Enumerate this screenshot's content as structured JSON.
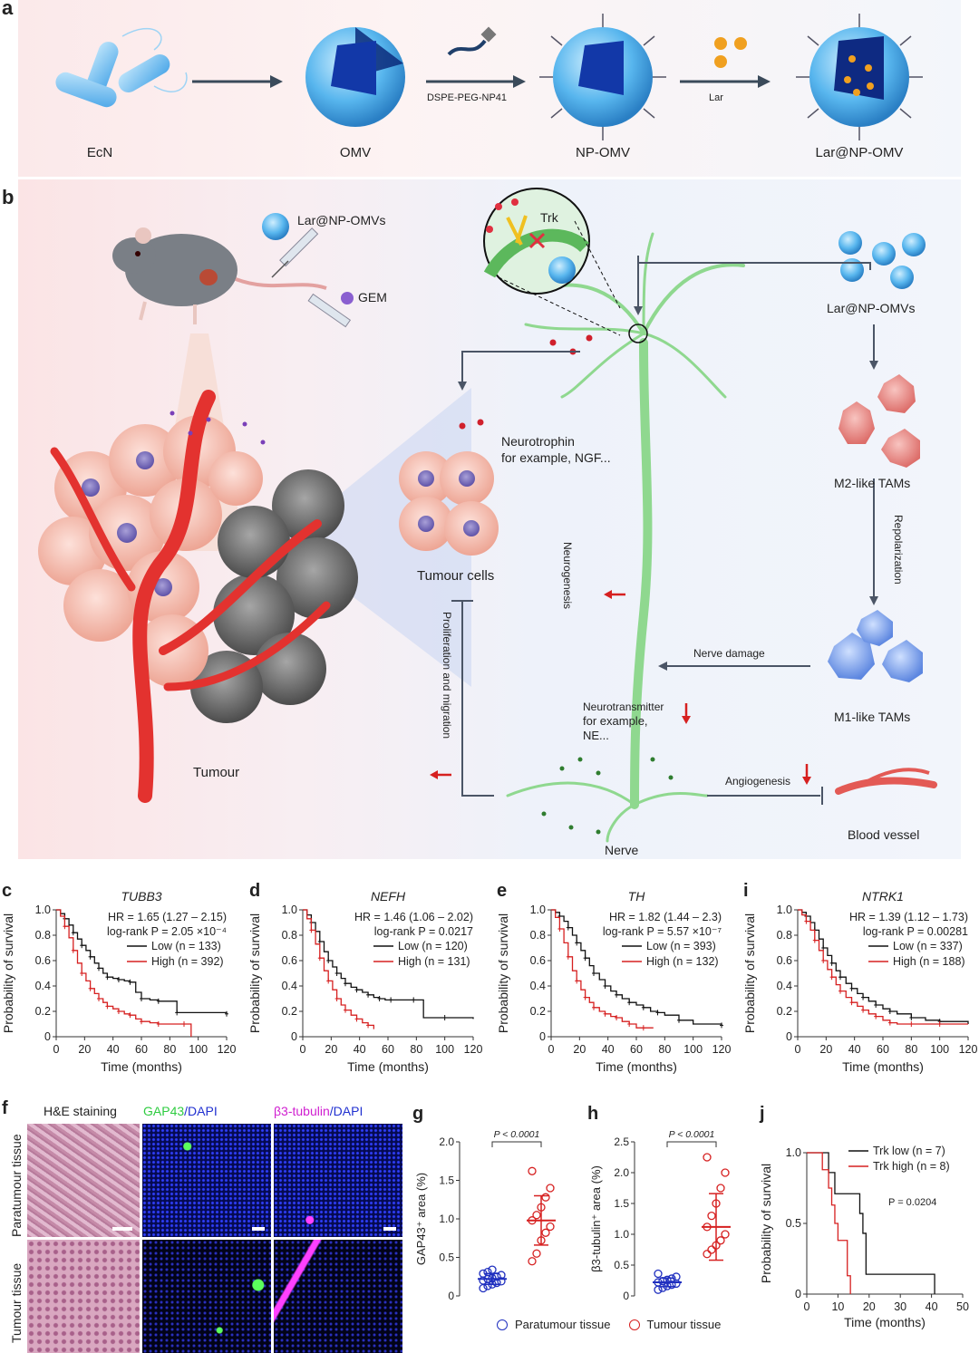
{
  "panel_letters": {
    "a": "a",
    "b": "b",
    "c": "c",
    "d": "d",
    "e": "e",
    "i": "i",
    "f": "f",
    "g": "g",
    "h": "h",
    "j": "j"
  },
  "panel_a": {
    "items": [
      "EcN",
      "OMV",
      "NP-OMV",
      "Lar@NP-OMV"
    ],
    "arrow1_label": "DSPE-PEG-NP41",
    "arrow2_label": "Lar"
  },
  "panel_b": {
    "injection_label": "Lar@NP-OMVs",
    "gem_label": "GEM",
    "trk_label": "Trk",
    "tumour_label": "Tumour",
    "neurotrophin_label_1": "Neurotrophin",
    "neurotrophin_label_2": "for example, NGF...",
    "tumour_cells_label": "Tumour cells",
    "neurogenesis_label": "Neurogenesis",
    "prolif_label": "Proliferation and migration",
    "omvs_label": "Lar@NP-OMVs",
    "m2_label": "M2-like TAMs",
    "repolar_label": "Repolarization",
    "nerve_damage_label": "Nerve damage",
    "m1_label": "M1-like TAMs",
    "neurotransmitter_label_1": "Neurotransmitter",
    "neurotransmitter_label_2": "for example,",
    "neurotransmitter_label_3": "NE...",
    "angiogenesis_label": "Angiogenesis",
    "blood_vessel_label": "Blood vessel",
    "nerve_label": "Nerve"
  },
  "colors": {
    "low": "#111111",
    "high": "#d62020",
    "para": "#1f2fbf",
    "tumour": "#d62020",
    "green": "#7ed98a",
    "red_vessel": "#e3322f"
  },
  "chart_data": [
    {
      "type": "line",
      "panel": "c",
      "title": "TUBB3",
      "xlabel": "Time (months)",
      "ylabel": "Probability of survival",
      "xlim": [
        0,
        120
      ],
      "ylim": [
        0,
        1
      ],
      "xticks": [
        0,
        20,
        40,
        60,
        80,
        100,
        120
      ],
      "yticks": [
        0,
        0.2,
        0.4,
        0.6,
        0.8,
        1.0
      ],
      "ann": [
        "HR = 1.65 (1.27 – 2.15)",
        "log-rank P = 2.05 ×10⁻⁴"
      ],
      "legend": [
        "Low (n = 133)",
        "High (n = 392)"
      ],
      "series": [
        {
          "name": "Low",
          "color": "low",
          "x": [
            0,
            3,
            6,
            9,
            12,
            15,
            18,
            21,
            24,
            27,
            30,
            33,
            36,
            40,
            44,
            48,
            52,
            56,
            60,
            66,
            72,
            78,
            85,
            95,
            120
          ],
          "y": [
            1,
            0.97,
            0.93,
            0.88,
            0.82,
            0.77,
            0.72,
            0.68,
            0.63,
            0.58,
            0.54,
            0.5,
            0.47,
            0.46,
            0.45,
            0.44,
            0.43,
            0.35,
            0.3,
            0.29,
            0.28,
            0.28,
            0.19,
            0.19,
            0.18
          ]
        },
        {
          "name": "High",
          "color": "high",
          "x": [
            0,
            3,
            6,
            9,
            12,
            15,
            18,
            21,
            24,
            27,
            30,
            33,
            36,
            40,
            44,
            48,
            52,
            56,
            60,
            66,
            72,
            80,
            90,
            95
          ],
          "y": [
            1,
            0.95,
            0.87,
            0.78,
            0.68,
            0.58,
            0.5,
            0.44,
            0.38,
            0.34,
            0.3,
            0.27,
            0.24,
            0.22,
            0.2,
            0.18,
            0.17,
            0.14,
            0.12,
            0.11,
            0.1,
            0.1,
            0.1,
            0.0
          ]
        }
      ]
    },
    {
      "type": "line",
      "panel": "d",
      "title": "NEFH",
      "xlabel": "Time (months)",
      "ylabel": "Probability of survival",
      "xlim": [
        0,
        120
      ],
      "ylim": [
        0,
        1
      ],
      "xticks": [
        0,
        20,
        40,
        60,
        80,
        100,
        120
      ],
      "yticks": [
        0,
        0.2,
        0.4,
        0.6,
        0.8,
        1.0
      ],
      "ann": [
        "HR = 1.46 (1.06 – 2.02)",
        "log-rank P = 0.0217"
      ],
      "legend": [
        "Low (n = 120)",
        "High (n = 131)"
      ],
      "series": [
        {
          "name": "Low",
          "color": "low",
          "x": [
            0,
            3,
            6,
            9,
            12,
            15,
            18,
            21,
            24,
            27,
            30,
            34,
            38,
            42,
            46,
            50,
            54,
            58,
            62,
            70,
            78,
            85,
            100,
            120
          ],
          "y": [
            1,
            0.96,
            0.9,
            0.83,
            0.75,
            0.67,
            0.6,
            0.55,
            0.5,
            0.46,
            0.42,
            0.39,
            0.37,
            0.35,
            0.33,
            0.31,
            0.3,
            0.29,
            0.29,
            0.29,
            0.29,
            0.15,
            0.15,
            0.14
          ]
        },
        {
          "name": "High",
          "color": "high",
          "x": [
            0,
            3,
            6,
            9,
            12,
            15,
            18,
            21,
            24,
            27,
            30,
            34,
            38,
            42,
            46,
            50
          ],
          "y": [
            1,
            0.93,
            0.84,
            0.73,
            0.62,
            0.52,
            0.44,
            0.37,
            0.3,
            0.25,
            0.21,
            0.17,
            0.14,
            0.11,
            0.09,
            0.06
          ]
        }
      ]
    },
    {
      "type": "line",
      "panel": "e",
      "title": "TH",
      "xlabel": "Time (months)",
      "ylabel": "Probability of survival",
      "xlim": [
        0,
        120
      ],
      "ylim": [
        0,
        1
      ],
      "xticks": [
        0,
        20,
        40,
        60,
        80,
        100,
        120
      ],
      "yticks": [
        0,
        0.2,
        0.4,
        0.6,
        0.8,
        1.0
      ],
      "ann": [
        "HR = 1.82 (1.44 – 2.3)",
        "log-rank P = 5.57 ×10⁻⁷"
      ],
      "legend": [
        "Low (n = 393)",
        "High (n = 132)"
      ],
      "series": [
        {
          "name": "Low",
          "color": "low",
          "x": [
            0,
            3,
            6,
            9,
            12,
            15,
            18,
            21,
            24,
            27,
            30,
            34,
            38,
            42,
            46,
            50,
            55,
            60,
            65,
            70,
            75,
            80,
            90,
            100,
            120
          ],
          "y": [
            1,
            0.98,
            0.95,
            0.91,
            0.86,
            0.8,
            0.74,
            0.68,
            0.62,
            0.56,
            0.5,
            0.45,
            0.4,
            0.36,
            0.33,
            0.3,
            0.27,
            0.25,
            0.23,
            0.2,
            0.19,
            0.17,
            0.13,
            0.1,
            0.09
          ]
        },
        {
          "name": "High",
          "color": "high",
          "x": [
            0,
            3,
            6,
            9,
            12,
            15,
            18,
            21,
            24,
            27,
            30,
            34,
            38,
            42,
            46,
            50,
            55,
            60,
            65,
            72
          ],
          "y": [
            1,
            0.94,
            0.85,
            0.74,
            0.63,
            0.52,
            0.44,
            0.37,
            0.31,
            0.27,
            0.23,
            0.2,
            0.18,
            0.16,
            0.15,
            0.12,
            0.1,
            0.07,
            0.07,
            0.07
          ]
        }
      ]
    },
    {
      "type": "line",
      "panel": "i",
      "title": "NTRK1",
      "xlabel": "Time (months)",
      "ylabel": "Probability of survival",
      "xlim": [
        0,
        120
      ],
      "ylim": [
        0,
        1
      ],
      "xticks": [
        0,
        20,
        40,
        60,
        80,
        100,
        120
      ],
      "yticks": [
        0,
        0.2,
        0.4,
        0.6,
        0.8,
        1.0
      ],
      "ann": [
        "HR = 1.39 (1.12 – 1.73)",
        "log-rank P = 0.00281"
      ],
      "legend": [
        "Low (n = 337)",
        "High (n = 188)"
      ],
      "series": [
        {
          "name": "Low",
          "color": "low",
          "x": [
            0,
            3,
            6,
            9,
            12,
            15,
            18,
            21,
            24,
            27,
            30,
            34,
            38,
            42,
            46,
            50,
            55,
            60,
            65,
            70,
            80,
            90,
            100,
            120
          ],
          "y": [
            1,
            0.98,
            0.95,
            0.9,
            0.84,
            0.77,
            0.7,
            0.64,
            0.58,
            0.52,
            0.47,
            0.42,
            0.38,
            0.34,
            0.31,
            0.28,
            0.25,
            0.22,
            0.2,
            0.18,
            0.15,
            0.13,
            0.12,
            0.1
          ]
        },
        {
          "name": "High",
          "color": "high",
          "x": [
            0,
            3,
            6,
            9,
            12,
            15,
            18,
            21,
            24,
            27,
            30,
            34,
            38,
            42,
            46,
            50,
            55,
            60,
            65,
            70,
            80,
            90,
            100,
            120
          ],
          "y": [
            1,
            0.96,
            0.91,
            0.84,
            0.76,
            0.68,
            0.6,
            0.53,
            0.47,
            0.41,
            0.36,
            0.31,
            0.27,
            0.24,
            0.21,
            0.18,
            0.16,
            0.13,
            0.11,
            0.1,
            0.1,
            0.1,
            0.1,
            0.1
          ]
        }
      ]
    },
    {
      "type": "scatter",
      "panel": "g",
      "ylabel": "GAP43⁺ area (%)",
      "ylim": [
        0,
        2.0
      ],
      "yticks": [
        0,
        0.5,
        1.0,
        1.5,
        2.0
      ],
      "pval": "P < 0.0001",
      "groups": [
        {
          "name": "Paratumour tissue",
          "color": "para",
          "mean": 0.22,
          "sd": 0.07,
          "values": [
            0.1,
            0.13,
            0.15,
            0.17,
            0.19,
            0.2,
            0.22,
            0.23,
            0.25,
            0.27,
            0.29,
            0.31,
            0.34
          ]
        },
        {
          "name": "Tumour tissue",
          "color": "tumour",
          "mean": 0.98,
          "sd": 0.32,
          "values": [
            0.45,
            0.55,
            0.72,
            0.82,
            0.9,
            0.98,
            1.05,
            1.15,
            1.28,
            1.4,
            1.62
          ]
        }
      ]
    },
    {
      "type": "scatter",
      "panel": "h",
      "ylabel": "β3-tubulin⁺ area (%)",
      "ylim": [
        0,
        2.5
      ],
      "yticks": [
        0,
        0.5,
        1.0,
        1.5,
        2.0,
        2.5
      ],
      "pval": "P < 0.0001",
      "groups": [
        {
          "name": "Paratumour tissue",
          "color": "para",
          "mean": 0.22,
          "sd": 0.07,
          "values": [
            0.1,
            0.13,
            0.16,
            0.18,
            0.2,
            0.22,
            0.24,
            0.26,
            0.28,
            0.31,
            0.36
          ]
        },
        {
          "name": "Tumour tissue",
          "color": "tumour",
          "mean": 1.12,
          "sd": 0.54,
          "values": [
            0.68,
            0.75,
            0.82,
            0.9,
            1.0,
            1.12,
            1.3,
            1.5,
            1.75,
            2.0,
            2.25
          ]
        }
      ]
    },
    {
      "type": "line",
      "panel": "j",
      "xlabel": "Time (months)",
      "ylabel": "Probability of survival",
      "xlim": [
        0,
        50
      ],
      "ylim": [
        0,
        1
      ],
      "xticks": [
        0,
        10,
        20,
        30,
        40,
        50
      ],
      "yticks": [
        0,
        0.5,
        1.0
      ],
      "pval": "P = 0.0204",
      "legend": [
        "Trk low (n = 7)",
        "Trk high (n = 8)"
      ],
      "series": [
        {
          "name": "Trk low",
          "color": "low",
          "x": [
            0,
            7,
            9,
            17,
            18,
            19,
            41
          ],
          "y": [
            1,
            0.86,
            0.71,
            0.57,
            0.43,
            0.14,
            0.0
          ]
        },
        {
          "name": "Trk high",
          "color": "high",
          "x": [
            0,
            5,
            7,
            8,
            9,
            10,
            13,
            14
          ],
          "y": [
            1,
            0.88,
            0.75,
            0.63,
            0.5,
            0.38,
            0.13,
            0.0
          ]
        }
      ]
    }
  ],
  "panel_f": {
    "col1": "H&E staining",
    "col2a": "GAP43",
    "col2b": "/DAPI",
    "col3a": "β3-tubulin",
    "col3b": "/DAPI",
    "row1": "Paratumour tissue",
    "row2": "Tumour tissue"
  },
  "legend_gh": {
    "para": "Paratumour tissue",
    "tumour": "Tumour tissue"
  }
}
